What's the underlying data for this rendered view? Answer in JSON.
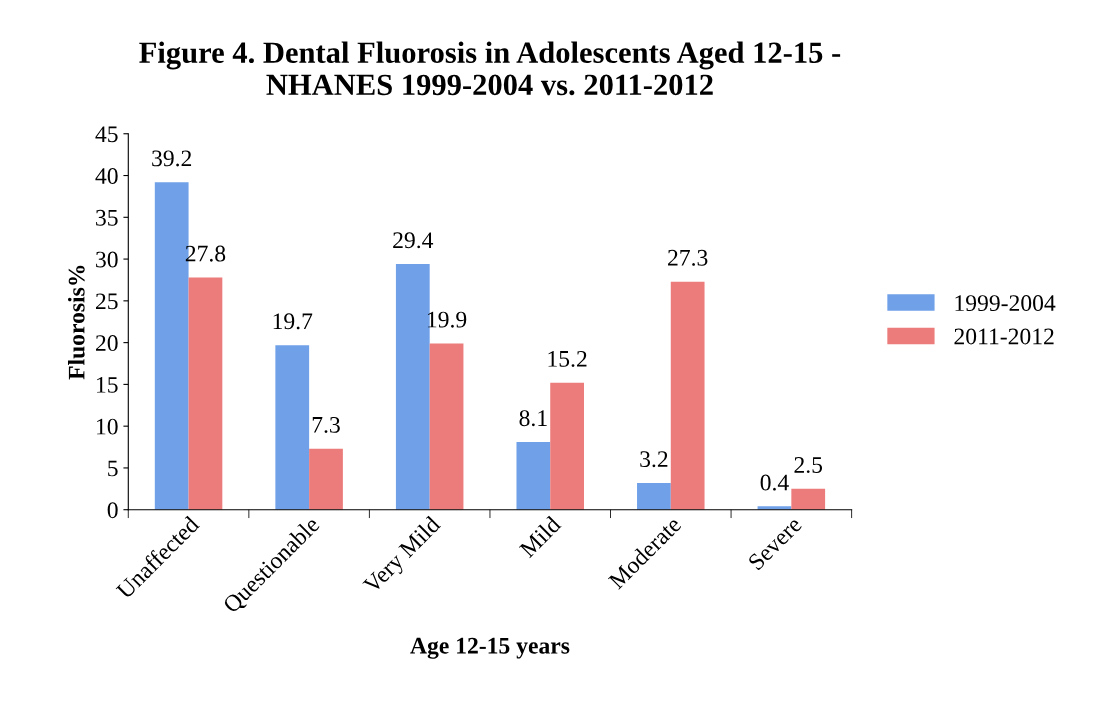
{
  "chart_data": {
    "type": "bar",
    "title": "Figure 4. Dental Fluorosis in Adolescents Aged 12-15 -\nNHANES 1999-2004 vs. 2011-2012",
    "xlabel": "Age 12-15 years",
    "ylabel": "Fluorosis%",
    "categories": [
      "Unaffected",
      "Questionable",
      "Very Mild",
      "Mild",
      "Moderate",
      "Severe"
    ],
    "series": [
      {
        "name": "1999-2004",
        "color": "#6fa0e8",
        "values": [
          39.2,
          19.7,
          29.4,
          8.1,
          3.2,
          0.4
        ]
      },
      {
        "name": "2011-2012",
        "color": "#ec7b7b",
        "values": [
          27.8,
          7.3,
          19.9,
          15.2,
          27.3,
          2.5
        ]
      }
    ],
    "ylim": [
      0,
      45
    ],
    "yticks": [
      0,
      5,
      10,
      15,
      20,
      25,
      30,
      35,
      40,
      45
    ],
    "data_labels": true,
    "legend": "right",
    "grid": false
  }
}
